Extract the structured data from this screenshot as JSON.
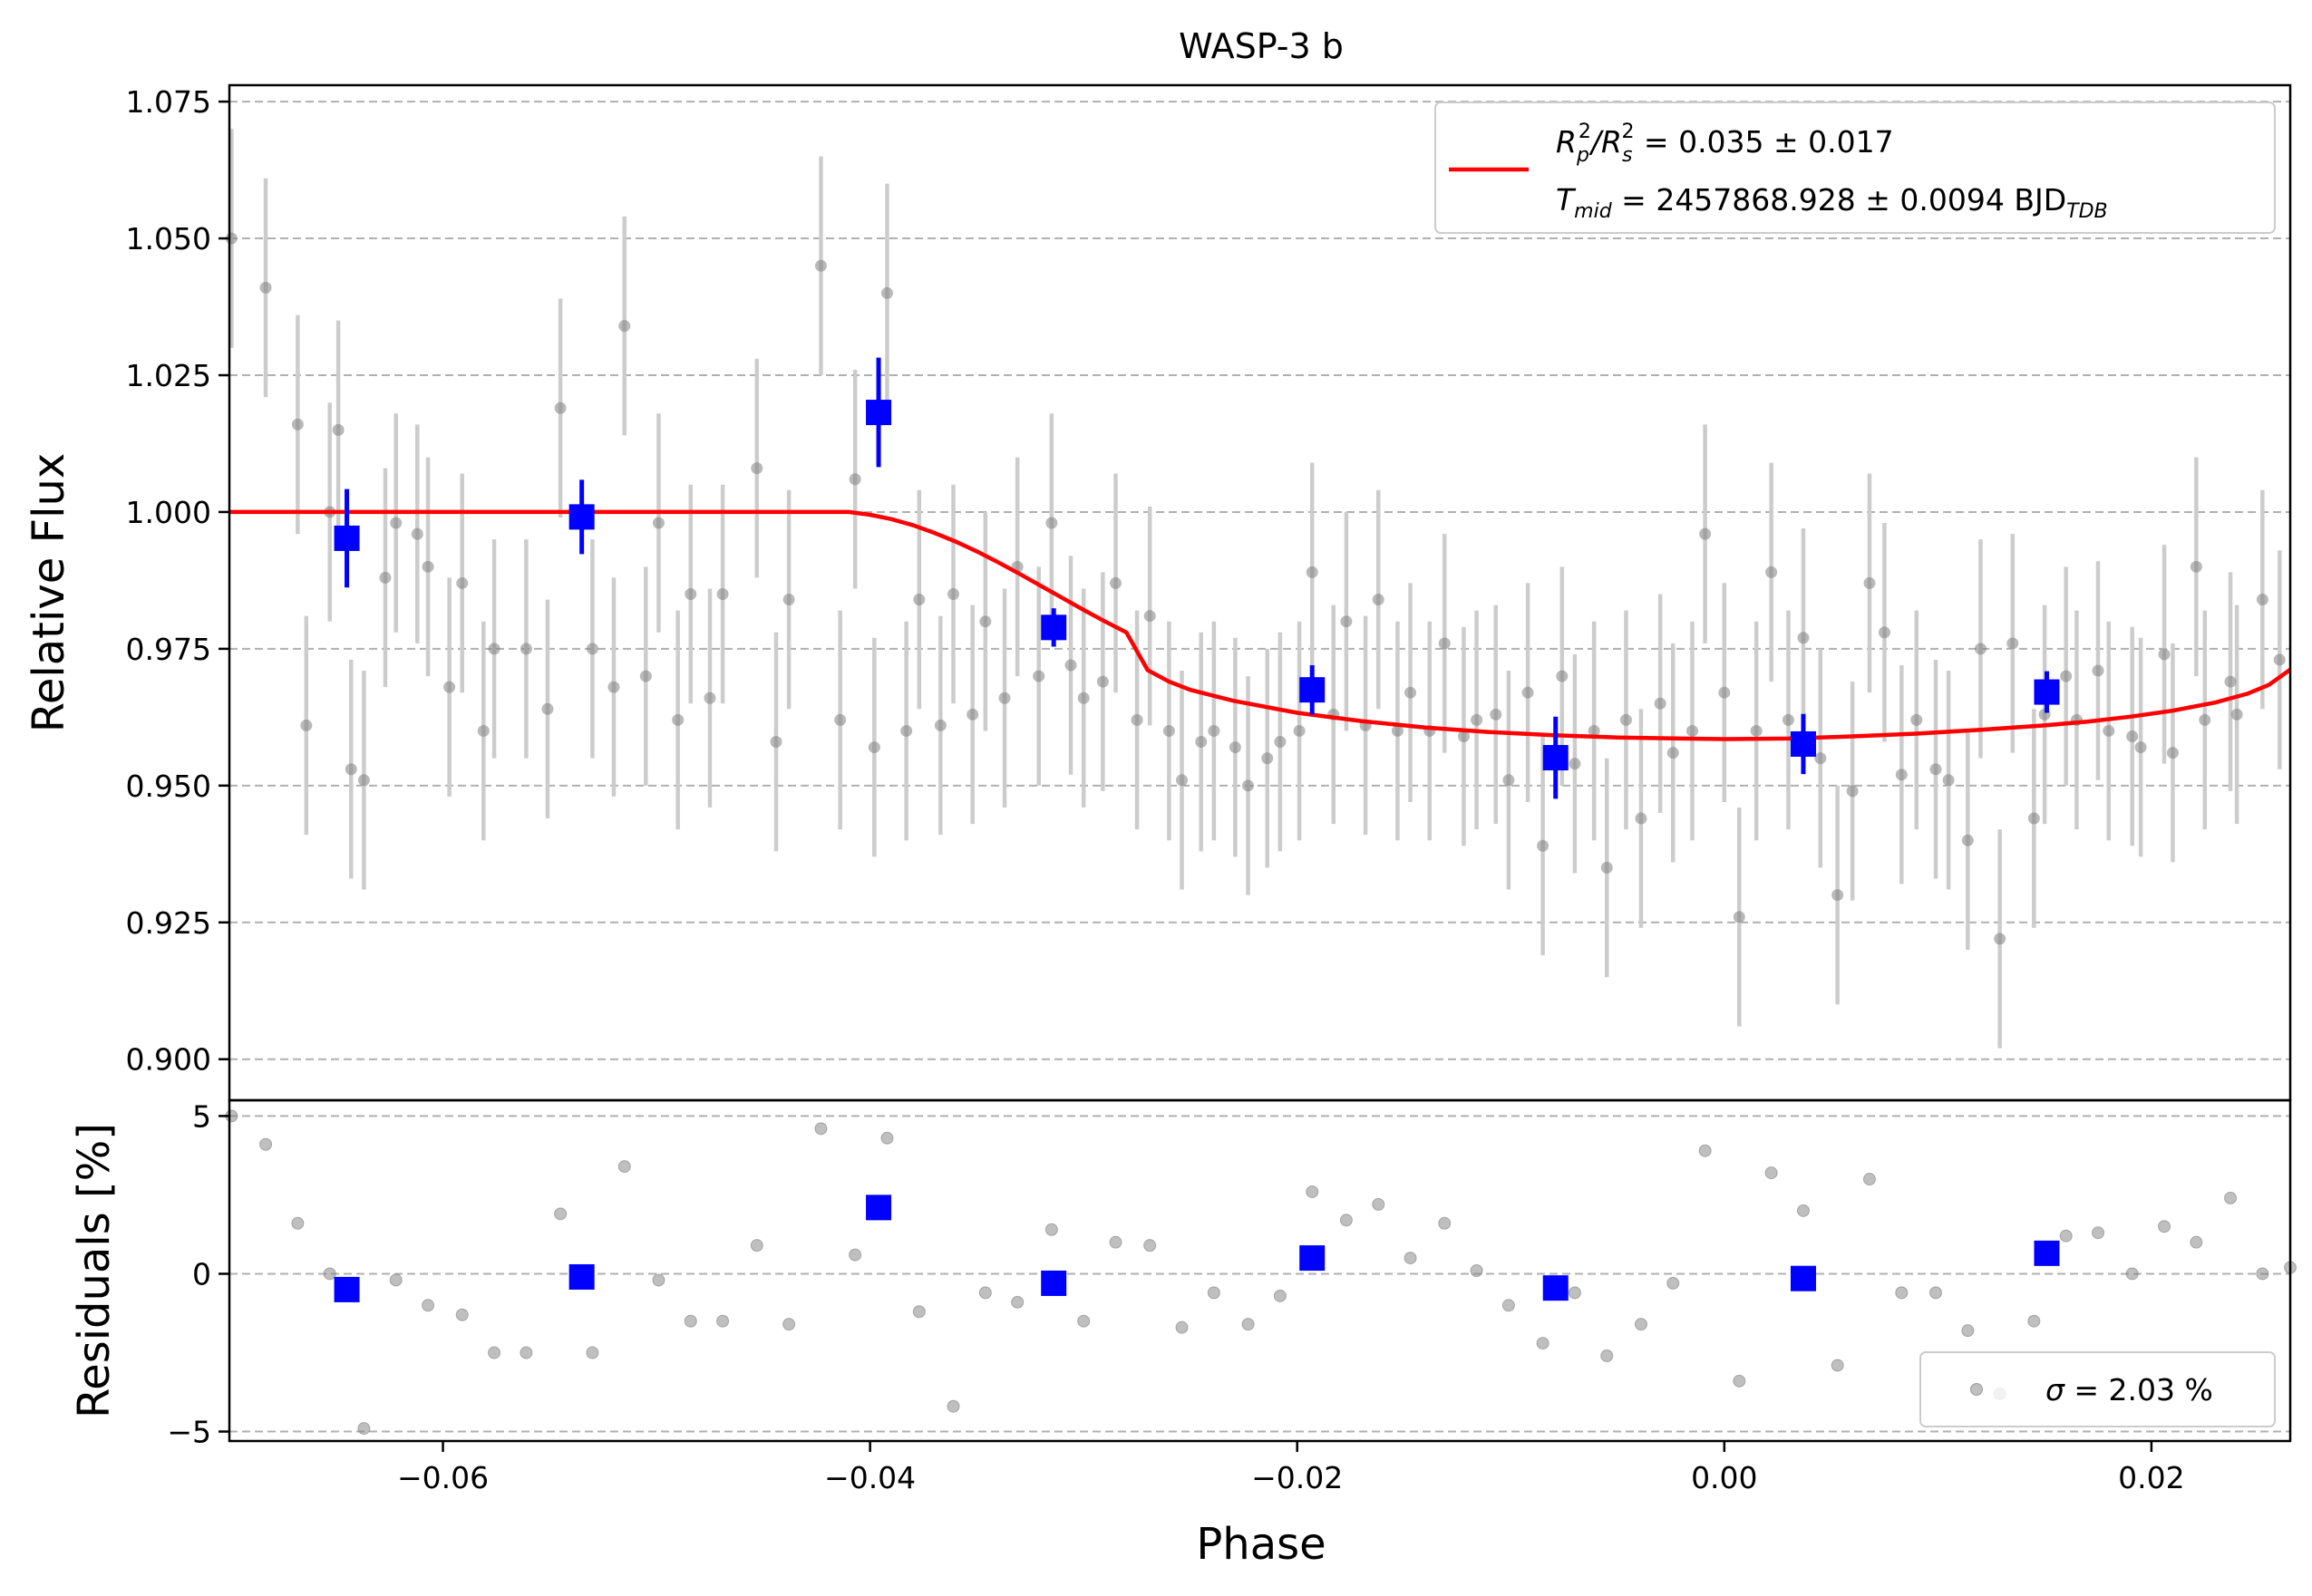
{
  "chart_data": [
    {
      "type": "scatter",
      "title": "WASP-3 b",
      "xlabel": "",
      "ylabel": "Relative Flux",
      "xlim": [
        -0.07,
        0.0265
      ],
      "ylim": [
        0.8925,
        1.078
      ],
      "grid": "horizontal dashed",
      "yticks": [
        0.9,
        0.925,
        0.95,
        0.975,
        1.0,
        1.025,
        1.05,
        1.075
      ],
      "ytick_labels": [
        "0.900",
        "0.925",
        "0.950",
        "0.975",
        "1.000",
        "1.025",
        "1.050",
        "1.075"
      ],
      "legend": {
        "placement": "top-right",
        "entries": [
          {
            "label_line1_parts": [
              "R",
              "p",
              "2",
              "/R",
              "s",
              "2",
              " = 0.035 ± 0.017"
            ],
            "label_line2_parts": [
              "T",
              "mid",
              " = 2457868.928 ± 0.0094 BJD",
              "TDB"
            ],
            "color": "#ff0000"
          }
        ]
      },
      "series": [
        {
          "role": "data",
          "color": "#808080",
          "x": [
            -0.0699,
            -0.0683,
            -0.0668,
            -0.0653,
            -0.0637,
            -0.0622,
            -0.0607,
            -0.0591,
            -0.0576,
            -0.0561,
            -0.0545,
            -0.053,
            -0.0515,
            -0.0499,
            -0.0484,
            -0.0469,
            -0.0453,
            -0.0438,
            -0.0423,
            -0.0407,
            -0.0392,
            -0.0377,
            -0.0361,
            -0.0346,
            -0.0331,
            -0.0315,
            -0.03,
            -0.0285,
            -0.0269,
            -0.0254,
            -0.0239,
            -0.0223,
            -0.0208,
            -0.0193,
            -0.0177,
            -0.0162,
            -0.0147,
            -0.0131,
            -0.0116,
            -0.0101,
            -0.0085,
            -0.007,
            -0.0055,
            -0.0039,
            -0.0024,
            -0.0009,
            0.0007,
            0.0022,
            0.0037,
            0.0053,
            0.0068,
            0.0083,
            0.0099,
            0.0114,
            0.0129,
            0.0145,
            0.016,
            0.0175,
            0.0191,
            0.0206,
            0.0221,
            0.0237,
            0.0252,
            -0.0664,
            -0.0649,
            -0.0643,
            -0.0627,
            -0.0612,
            -0.0597,
            -0.0581,
            -0.0551,
            -0.052,
            -0.0505,
            -0.049,
            -0.0475,
            -0.0444,
            -0.0414,
            -0.0398,
            -0.0383,
            -0.0367,
            -0.0352,
            -0.0337,
            -0.0321,
            -0.0306,
            -0.0291,
            -0.0275,
            -0.026,
            -0.0245,
            -0.0229,
            -0.0214,
            -0.0199,
            -0.0183,
            -0.0168,
            -0.0153,
            -0.0138,
            -0.0122,
            -0.0107,
            -0.0092,
            -0.0076,
            -0.0061,
            -0.0046,
            -0.003,
            -0.0015,
            0.0,
            0.0015,
            0.003,
            0.0045,
            0.006,
            0.0075,
            0.009,
            0.0105,
            0.012,
            0.0135,
            0.015,
            0.0165,
            0.018,
            0.0195,
            0.021,
            0.0225,
            0.024,
            0.026
          ],
          "y": [
            1.05,
            1.041,
            1.016,
            1.0,
            0.951,
            0.998,
            0.99,
            0.987,
            0.975,
            0.975,
            1.019,
            0.975,
            1.034,
            0.998,
            0.985,
            0.985,
            1.008,
            0.984,
            1.045,
            1.006,
            1.04,
            0.984,
            0.985,
            0.98,
            0.99,
            0.998,
            0.966,
            0.987,
            0.981,
            0.951,
            0.96,
            0.95,
            0.958,
            0.989,
            0.98,
            0.984,
            0.967,
            0.976,
            0.962,
            0.951,
            0.939,
            0.954,
            0.935,
            0.944,
            0.956,
            0.996,
            0.926,
            0.989,
            0.977,
            0.93,
            0.987,
            0.952,
            0.953,
            0.94,
            0.922,
            0.944,
            0.97,
            0.971,
            0.959,
            0.974,
            0.99,
            0.969,
            0.984,
            0.961,
            1.015,
            0.953,
            0.988,
            0.996,
            0.968,
            0.96,
            0.964,
            0.968,
            0.97,
            0.962,
            0.966,
            0.958,
            0.962,
            0.957,
            0.96,
            0.961,
            0.963,
            0.966,
            0.97,
            0.972,
            0.969,
            0.962,
            0.96,
            0.958,
            0.957,
            0.955,
            0.96,
            0.963,
            0.961,
            0.96,
            0.96,
            0.959,
            0.963,
            0.967,
            0.97,
            0.96,
            0.962,
            0.965,
            0.96,
            0.967,
            0.96,
            0.962,
            0.955,
            0.949,
            0.978,
            0.962,
            0.951,
            0.975,
            0.976,
            0.963,
            0.962,
            0.96,
            0.957,
            0.956,
            0.962,
            0.963,
            0.973
          ],
          "yerr": 0.02
        },
        {
          "role": "binned",
          "color": "#0000ff",
          "x": [
            -0.0645,
            -0.0535,
            -0.0396,
            -0.0314,
            -0.0193,
            -0.0079,
            0.0037,
            0.0151
          ],
          "y": [
            0.9952,
            0.9991,
            1.0182,
            0.9789,
            0.9675,
            0.9551,
            0.9576,
            0.9671
          ],
          "yerr": [
            0.009,
            0.0068,
            0.01,
            0.0035,
            0.0045,
            0.0075,
            0.0055,
            0.0038
          ]
        },
        {
          "role": "model",
          "color": "#ff0000",
          "x": [
            -0.07,
            -0.06,
            -0.05,
            -0.042,
            -0.041,
            -0.04,
            -0.039,
            -0.038,
            -0.037,
            -0.036,
            -0.035,
            -0.034,
            -0.033,
            -0.032,
            -0.031,
            -0.03,
            -0.029,
            -0.028,
            -0.027,
            -0.026,
            -0.025,
            -0.023,
            -0.02,
            -0.017,
            -0.014,
            -0.011,
            -0.008,
            -0.005,
            -0.002,
            0.0,
            0.003,
            0.006,
            0.009,
            0.012,
            0.015,
            0.017,
            0.019,
            0.021,
            0.023,
            0.0245,
            0.0255,
            0.0265
          ],
          "y": [
            1.0,
            1.0,
            1.0,
            1.0,
            1.0,
            0.9995,
            0.9987,
            0.9976,
            0.9962,
            0.9946,
            0.9928,
            0.9908,
            0.9887,
            0.9865,
            0.9843,
            0.9821,
            0.98,
            0.978,
            0.9711,
            0.969,
            0.9675,
            0.9655,
            0.9633,
            0.9618,
            0.9606,
            0.9598,
            0.9592,
            0.9588,
            0.9586,
            0.9585,
            0.9586,
            0.959,
            0.9595,
            0.9602,
            0.961,
            0.9617,
            0.9626,
            0.9637,
            0.9652,
            0.9668,
            0.9684,
            0.9712
          ]
        }
      ]
    },
    {
      "type": "scatter",
      "xlabel": "Phase",
      "ylabel": "Residuals [%]",
      "xlim": [
        -0.07,
        0.0265
      ],
      "ylim": [
        -5.3,
        5.5
      ],
      "grid": "horizontal dashed",
      "xticks": [
        -0.06,
        -0.04,
        -0.02,
        0.0,
        0.02
      ],
      "xtick_labels": [
        "−0.06",
        "−0.04",
        "−0.02",
        "0.00",
        "0.02"
      ],
      "yticks": [
        -5,
        0,
        5
      ],
      "ytick_labels": [
        "−5",
        "0",
        "5"
      ],
      "legend": {
        "placement": "bottom-right",
        "entries": [
          {
            "label_parts": [
              "σ",
              " = 2.03 %"
            ],
            "color": "#808080"
          }
        ]
      },
      "series": [
        {
          "role": "data",
          "color": "#808080",
          "x": [
            -0.0699,
            -0.0683,
            -0.0668,
            -0.0653,
            -0.0637,
            -0.0622,
            -0.0607,
            -0.0591,
            -0.0576,
            -0.0561,
            -0.0545,
            -0.053,
            -0.0515,
            -0.0499,
            -0.0484,
            -0.0469,
            -0.0453,
            -0.0438,
            -0.0423,
            -0.0407,
            -0.0392,
            -0.0377,
            -0.0361,
            -0.0346,
            -0.0331,
            -0.0315,
            -0.03,
            -0.0285,
            -0.0269,
            -0.0254,
            -0.0239,
            -0.0223,
            -0.0208,
            -0.0193,
            -0.0177,
            -0.0162,
            -0.0147,
            -0.0131,
            -0.0116,
            -0.0101,
            -0.0085,
            -0.007,
            -0.0055,
            -0.0039,
            -0.0024,
            -0.0009,
            0.0007,
            0.0022,
            0.0037,
            0.0053,
            0.0068,
            0.0083,
            0.0099,
            0.0114,
            0.0129,
            0.0145,
            0.016,
            0.0175,
            0.0191,
            0.0206,
            0.0221,
            0.0237,
            0.0252,
            0.0265
          ],
          "y": [
            5.0,
            4.1,
            1.6,
            0.0,
            -4.9,
            -0.2,
            -1.0,
            -1.3,
            -2.5,
            -2.5,
            1.9,
            -2.5,
            3.4,
            -0.2,
            -1.5,
            -1.5,
            0.9,
            -1.6,
            4.6,
            0.6,
            4.3,
            -1.2,
            -4.2,
            -0.6,
            -0.9,
            1.4,
            -1.5,
            1.0,
            0.9,
            -1.7,
            -0.6,
            -1.6,
            -0.7,
            2.6,
            1.7,
            2.2,
            0.5,
            1.6,
            0.1,
            -1.0,
            -2.2,
            -0.6,
            -2.6,
            -1.6,
            -0.3,
            3.9,
            -3.4,
            3.2,
            2.0,
            -2.9,
            3.0,
            -0.6,
            -0.6,
            -1.8,
            -3.8,
            -1.5,
            1.2,
            1.3,
            0.0,
            1.5,
            1.0,
            2.4,
            0.0,
            0.2
          ]
        },
        {
          "role": "binned",
          "color": "#0000ff",
          "x": [
            -0.0645,
            -0.0535,
            -0.0396,
            -0.0314,
            -0.0193,
            -0.0079,
            0.0037,
            0.0151
          ],
          "y": [
            -0.5,
            -0.1,
            2.1,
            -0.3,
            0.5,
            -0.45,
            -0.15,
            0.65
          ]
        }
      ]
    }
  ]
}
